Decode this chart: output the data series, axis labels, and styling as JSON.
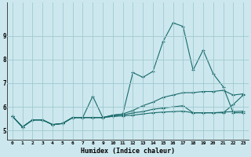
{
  "xlabel": "Humidex (Indice chaleur)",
  "bg_color": "#cce8ee",
  "grid_color": "#a0c8d0",
  "line_color": "#1a6b6b",
  "xlim": [
    -0.5,
    23.5
  ],
  "ylim": [
    4.6,
    10.4
  ],
  "xticks": [
    0,
    1,
    2,
    3,
    4,
    5,
    6,
    7,
    8,
    9,
    10,
    11,
    12,
    13,
    14,
    15,
    16,
    17,
    18,
    19,
    20,
    21,
    22,
    23
  ],
  "yticks": [
    5,
    6,
    7,
    8,
    9
  ],
  "lines": [
    [
      5.6,
      5.15,
      5.45,
      5.45,
      5.25,
      5.3,
      5.55,
      5.55,
      6.45,
      5.55,
      5.65,
      5.7,
      7.45,
      7.25,
      7.5,
      8.75,
      9.55,
      9.4,
      7.55,
      8.4,
      7.4,
      6.85,
      5.75,
      5.75
    ],
    [
      5.6,
      5.15,
      5.45,
      5.45,
      5.25,
      5.3,
      5.55,
      5.55,
      5.55,
      5.55,
      5.65,
      5.7,
      5.85,
      6.05,
      6.2,
      6.4,
      6.5,
      6.6,
      6.6,
      6.65,
      6.65,
      6.7,
      6.5,
      6.55
    ],
    [
      5.6,
      5.15,
      5.45,
      5.45,
      5.25,
      5.3,
      5.55,
      5.55,
      5.55,
      5.55,
      5.6,
      5.65,
      5.75,
      5.8,
      5.9,
      5.95,
      6.0,
      6.05,
      5.75,
      5.75,
      5.75,
      5.75,
      6.1,
      6.5
    ],
    [
      5.6,
      5.15,
      5.45,
      5.45,
      5.25,
      5.3,
      5.55,
      5.55,
      5.55,
      5.55,
      5.6,
      5.62,
      5.65,
      5.7,
      5.75,
      5.78,
      5.8,
      5.82,
      5.75,
      5.75,
      5.75,
      5.78,
      5.8,
      5.82
    ]
  ]
}
